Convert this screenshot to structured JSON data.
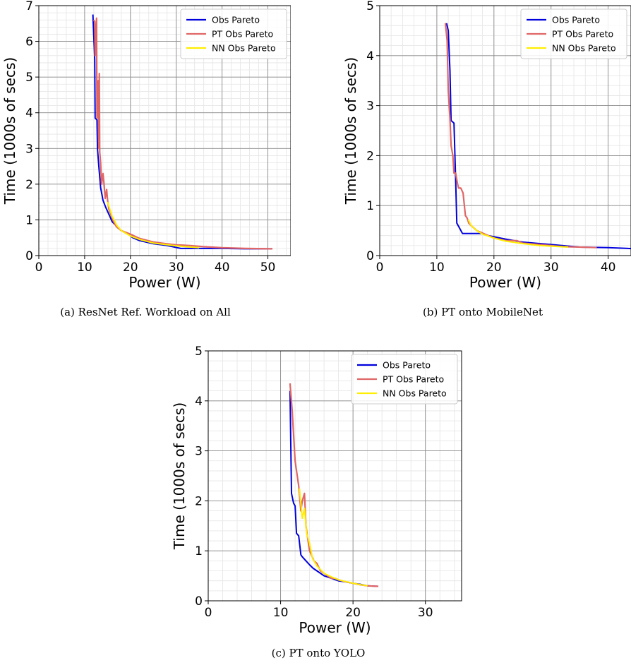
{
  "figure": {
    "captions": [
      "(a) ResNet Ref. Workload on All",
      "(b) PT onto MobileNet",
      "(c) PT onto YOLO"
    ]
  },
  "colors": {
    "obs": "#0000dd",
    "pt": "#e06666",
    "nn": "#ffee00"
  },
  "chart_data": [
    {
      "type": "line",
      "title": "",
      "xlabel": "Power (W)",
      "ylabel": "Time (1000s of secs)",
      "xlim": [
        0,
        55
      ],
      "ylim": [
        0,
        7
      ],
      "xticks": [
        0,
        10,
        20,
        30,
        40,
        50
      ],
      "yticks": [
        0,
        1,
        2,
        3,
        4,
        5,
        6,
        7
      ],
      "grid": true,
      "legend_position": "top-right",
      "series": [
        {
          "name": "Obs Pareto",
          "color": "#0000dd",
          "x": [
            11.8,
            12.2,
            12.3,
            12.7,
            12.8,
            13.1,
            13.5,
            14.0,
            14.6,
            15.5,
            16.0,
            17.0,
            18.0,
            19.5,
            20.5,
            22.0,
            25.0,
            28.0,
            31.0,
            35.0,
            40.0,
            45.0,
            51.0
          ],
          "y": [
            6.75,
            5.5,
            3.85,
            3.8,
            3.0,
            2.5,
            1.9,
            1.55,
            1.35,
            1.1,
            0.95,
            0.82,
            0.7,
            0.6,
            0.5,
            0.42,
            0.33,
            0.28,
            0.2,
            0.2,
            0.2,
            0.19,
            0.19
          ]
        },
        {
          "name": "PT Obs Pareto",
          "color": "#e06666",
          "x": [
            12.0,
            12.2,
            12.3,
            12.6,
            12.7,
            13.0,
            13.1,
            13.2,
            13.3,
            13.5,
            13.7,
            14.0,
            14.2,
            14.5,
            14.8,
            15.0,
            15.3,
            15.6,
            16.0,
            16.5,
            17.0,
            18.0,
            19.0,
            20.0,
            22.0,
            25.0,
            28.0,
            30.0,
            33.0,
            36.0,
            40.0,
            45.0,
            51.0
          ],
          "y": [
            6.6,
            6.55,
            5.6,
            6.65,
            3.85,
            4.9,
            3.0,
            5.1,
            2.9,
            2.6,
            2.0,
            2.3,
            2.05,
            1.6,
            1.85,
            1.55,
            1.3,
            1.2,
            1.05,
            0.9,
            0.8,
            0.7,
            0.65,
            0.6,
            0.48,
            0.38,
            0.33,
            0.3,
            0.28,
            0.25,
            0.22,
            0.2,
            0.19
          ]
        },
        {
          "name": "NN Obs Pareto",
          "color": "#ffee00",
          "x": [
            15.0,
            15.5,
            16.0,
            17.0,
            18.0,
            20.0,
            22.0,
            25.0,
            30.0,
            35.0
          ],
          "y": [
            1.5,
            1.3,
            1.1,
            0.85,
            0.7,
            0.55,
            0.45,
            0.35,
            0.27,
            0.22
          ]
        }
      ]
    },
    {
      "type": "line",
      "title": "",
      "xlabel": "Power (W)",
      "ylabel": "Time (1000s of secs)",
      "xlim": [
        0,
        44
      ],
      "ylim": [
        0,
        5
      ],
      "xticks": [
        0,
        10,
        20,
        30,
        40
      ],
      "yticks": [
        0,
        1,
        2,
        3,
        4,
        5
      ],
      "grid": true,
      "legend_position": "top-right",
      "series": [
        {
          "name": "Obs Pareto",
          "color": "#0000dd",
          "x": [
            11.7,
            12.0,
            12.3,
            12.5,
            13.0,
            13.3,
            13.5,
            14.5,
            16.0,
            18.0,
            19.0,
            22.0,
            25.0,
            30.0,
            35.0,
            40.0,
            44.0
          ],
          "y": [
            4.65,
            4.5,
            3.7,
            2.7,
            2.65,
            1.5,
            0.65,
            0.44,
            0.44,
            0.44,
            0.4,
            0.33,
            0.27,
            0.22,
            0.17,
            0.16,
            0.14
          ]
        },
        {
          "name": "PT Obs Pareto",
          "color": "#e06666",
          "x": [
            11.5,
            11.8,
            12.0,
            12.3,
            12.5,
            12.8,
            13.0,
            13.3,
            13.6,
            13.8,
            14.2,
            14.6,
            15.0,
            15.3,
            15.6,
            16.0,
            17.0,
            18.0,
            20.0,
            22.0,
            24.0,
            25.0,
            28.0,
            32.0,
            38.0
          ],
          "y": [
            4.65,
            4.3,
            3.3,
            2.75,
            2.2,
            2.0,
            1.65,
            1.65,
            1.45,
            1.35,
            1.35,
            1.25,
            0.8,
            0.75,
            0.65,
            0.6,
            0.5,
            0.45,
            0.35,
            0.3,
            0.3,
            0.25,
            0.22,
            0.18,
            0.16
          ]
        },
        {
          "name": "NN Obs Pareto",
          "color": "#ffee00",
          "x": [
            15.5,
            16.0,
            17.0,
            18.0,
            20.0,
            22.0,
            25.0,
            28.0,
            33.0
          ],
          "y": [
            0.72,
            0.6,
            0.5,
            0.43,
            0.35,
            0.29,
            0.24,
            0.2,
            0.17
          ]
        }
      ]
    },
    {
      "type": "line",
      "title": "",
      "xlabel": "Power (W)",
      "ylabel": "Time (1000s of secs)",
      "xlim": [
        0,
        35
      ],
      "ylim": [
        0,
        5
      ],
      "xticks": [
        0,
        10,
        20,
        30
      ],
      "yticks": [
        0,
        1,
        2,
        3,
        4,
        5
      ],
      "grid": true,
      "legend_position": "top-right",
      "series": [
        {
          "name": "Obs Pareto",
          "color": "#0000dd",
          "x": [
            11.3,
            11.5,
            11.8,
            12.0,
            12.2,
            12.5,
            12.8,
            13.0,
            13.5,
            14.0,
            14.5,
            15.0,
            16.0,
            17.0,
            18.0,
            19.0,
            20.0,
            21.0,
            22.0,
            23.5
          ],
          "y": [
            4.2,
            2.15,
            1.95,
            1.9,
            1.35,
            1.3,
            0.92,
            0.88,
            0.8,
            0.72,
            0.65,
            0.6,
            0.5,
            0.45,
            0.4,
            0.38,
            0.35,
            0.33,
            0.3,
            0.29
          ]
        },
        {
          "name": "PT Obs Pareto",
          "color": "#e06666",
          "x": [
            11.3,
            11.6,
            12.0,
            12.5,
            12.8,
            13.0,
            13.3,
            13.5,
            13.8,
            14.0,
            14.3,
            14.6,
            15.0,
            15.5,
            16.0,
            16.5,
            17.0,
            17.5,
            18.0,
            18.5,
            19.0,
            20.0,
            21.0,
            22.0,
            23.5
          ],
          "y": [
            4.35,
            3.8,
            2.8,
            2.3,
            1.8,
            2.0,
            2.15,
            1.5,
            1.2,
            1.0,
            0.9,
            0.8,
            0.75,
            0.6,
            0.55,
            0.5,
            0.45,
            0.45,
            0.42,
            0.4,
            0.38,
            0.35,
            0.32,
            0.3,
            0.29
          ]
        },
        {
          "name": "NN Obs Pareto",
          "color": "#ffee00",
          "x": [
            12.6,
            13.0,
            13.3,
            13.6,
            14.0,
            14.4,
            15.0,
            16.0,
            17.0,
            18.0,
            20.0,
            22.0
          ],
          "y": [
            2.25,
            1.65,
            1.85,
            1.35,
            1.15,
            0.85,
            0.7,
            0.55,
            0.48,
            0.42,
            0.35,
            0.3
          ]
        }
      ]
    }
  ]
}
